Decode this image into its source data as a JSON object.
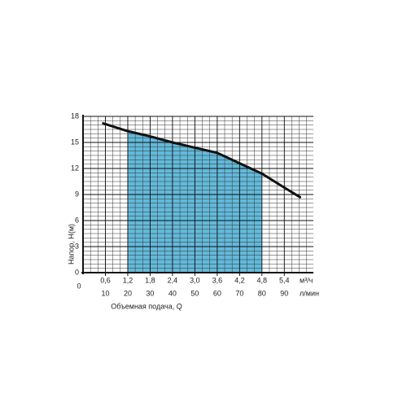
{
  "chart_data": {
    "type": "line",
    "x_label": "Объемная подача, Q",
    "y_label": "Напор, H(м)",
    "x_unit": "л/мин",
    "x2_unit": "м³/ч",
    "xlim": [
      0,
      103
    ],
    "xticks": [
      0,
      10,
      20,
      30,
      40,
      50,
      60,
      70,
      80,
      90
    ],
    "x2lim": [
      0,
      6.18
    ],
    "x2ticks": [
      {
        "value": 0.6,
        "label": "0,6"
      },
      {
        "value": 1.2,
        "label": "1,2"
      },
      {
        "value": 1.8,
        "label": "1,8"
      },
      {
        "value": 2.4,
        "label": "2,4"
      },
      {
        "value": 3.0,
        "label": "3,0"
      },
      {
        "value": 3.6,
        "label": "3,6"
      },
      {
        "value": 4.2,
        "label": "4,2"
      },
      {
        "value": 4.8,
        "label": "4,8"
      },
      {
        "value": 5.4,
        "label": "5,4"
      }
    ],
    "ylim": [
      0,
      18
    ],
    "yticks": [
      0,
      3,
      6,
      9,
      12,
      15,
      18
    ],
    "grid": true,
    "shaded_range": [
      20,
      80
    ],
    "shade_color": "#63b9da",
    "series": [
      {
        "color": "#111111",
        "x": [
          9,
          20,
          30,
          40,
          50,
          60,
          70,
          80,
          90,
          97
        ],
        "values": [
          17.2,
          16.3,
          15.7,
          15.0,
          14.4,
          13.8,
          12.6,
          11.4,
          9.8,
          8.7
        ]
      }
    ]
  }
}
